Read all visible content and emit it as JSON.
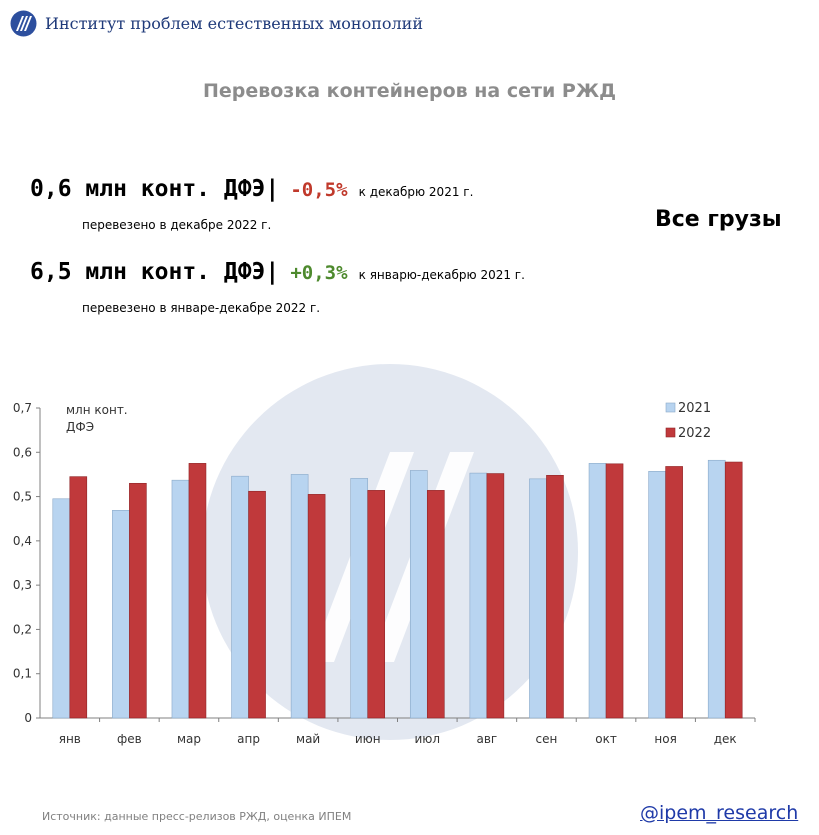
{
  "header": {
    "org_name": "Институт проблем естественных монополий"
  },
  "title": "Перевозка контейнеров на сети РЖД",
  "kpis": [
    {
      "value": "0,6 млн конт. ДФЭ|",
      "change": "-0,5%",
      "change_color": "#c0392b",
      "note": "к декабрю 2021 г.",
      "sub": "перевезено в декабре 2022 г."
    },
    {
      "value": "6,5 млн конт. ДФЭ|",
      "change": "+0,3%",
      "change_color": "#4e8a2e",
      "note": "к январю-декабрю 2021 г.",
      "sub": "перевезено в январе-декабре 2022 г."
    }
  ],
  "cargo_label": "Все грузы",
  "footer": {
    "source": "Источник: данные пресс-релизов РЖД, оценка ИПЕМ",
    "handle": "@ipem_research"
  },
  "chart_data": {
    "type": "bar",
    "ylabel": "млн конт. ДФЭ",
    "ylim": [
      0,
      0.7
    ],
    "yticks": [
      "0",
      "0,1",
      "0,2",
      "0,3",
      "0,4",
      "0,5",
      "0,6",
      "0,7"
    ],
    "categories": [
      "янв",
      "фев",
      "мар",
      "апр",
      "май",
      "июн",
      "июл",
      "авг",
      "сен",
      "окт",
      "ноя",
      "дек"
    ],
    "series": [
      {
        "name": "2021",
        "color": "#b8d4f0",
        "values": [
          0.495,
          0.469,
          0.537,
          0.546,
          0.55,
          0.541,
          0.559,
          0.553,
          0.54,
          0.575,
          0.557,
          0.582
        ]
      },
      {
        "name": "2022",
        "color": "#c0393b",
        "values": [
          0.545,
          0.53,
          0.575,
          0.512,
          0.505,
          0.514,
          0.514,
          0.552,
          0.548,
          0.574,
          0.568,
          0.578
        ]
      }
    ],
    "legend": "top-right",
    "grid": false
  }
}
